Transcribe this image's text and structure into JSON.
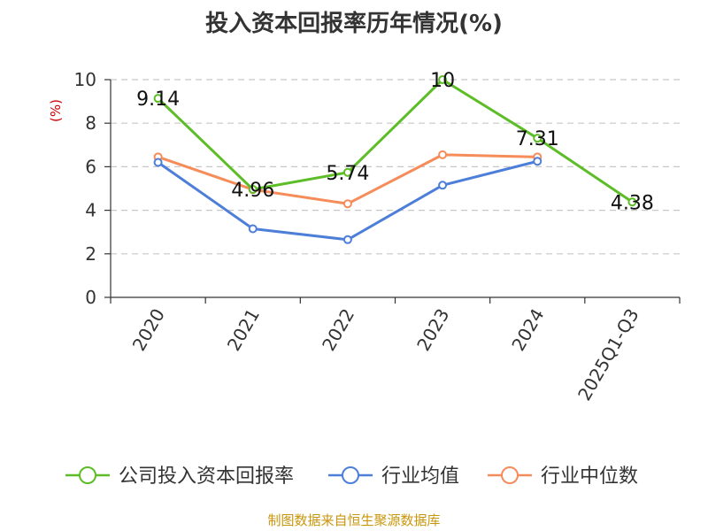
{
  "title": "投入资本回报率历年情况(%)",
  "source": "制图数据来自恒生聚源数据库",
  "chart_data": {
    "type": "line",
    "ylabel": "(%)",
    "ylim": [
      0,
      10
    ],
    "yticks": [
      "0",
      "2",
      "4",
      "6",
      "8",
      "10"
    ],
    "grid": true,
    "legend_position": "bottom",
    "categories": [
      "2020",
      "2021",
      "2022",
      "2023",
      "2024",
      "2025Q1-Q3"
    ],
    "series": [
      {
        "name": "公司投入资本回报率",
        "color": "#5cbd27",
        "values": [
          9.14,
          4.96,
          5.74,
          10,
          7.31,
          4.38
        ],
        "labels": [
          "9.14",
          "4.96",
          "5.74",
          "10",
          "7.31",
          "4.38"
        ]
      },
      {
        "name": "行业均值",
        "color": "#4e7fd8",
        "values": [
          6.2,
          3.15,
          2.65,
          5.15,
          6.25,
          null
        ]
      },
      {
        "name": "行业中位数",
        "color": "#f58c5a",
        "values": [
          6.45,
          4.95,
          4.3,
          6.55,
          6.45,
          null
        ]
      }
    ]
  }
}
